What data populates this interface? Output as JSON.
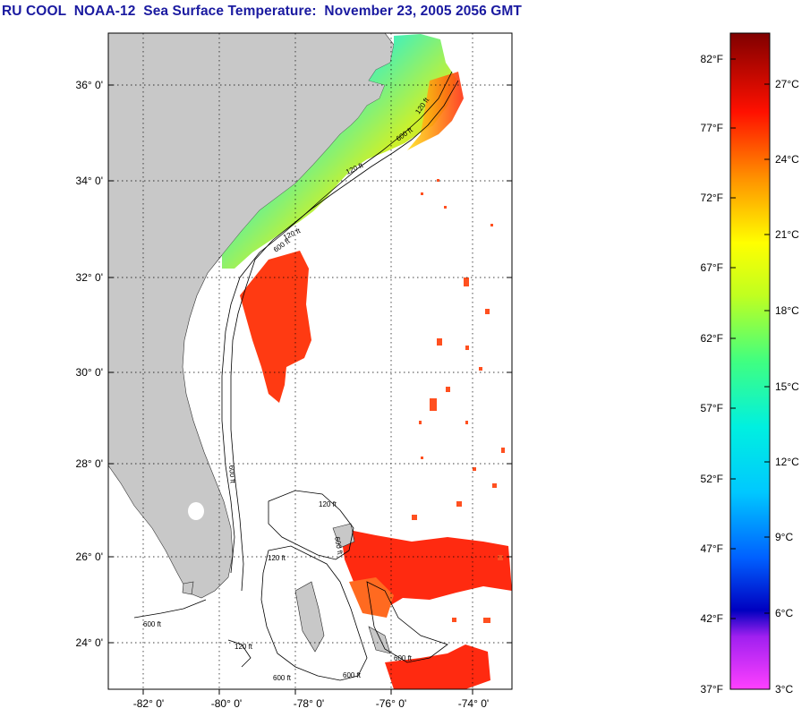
{
  "title": "RU COOL  NOAA-12  Sea Surface Temperature:  November 23, 2005 2056 GMT",
  "map": {
    "lat_labels": [
      "36° 0'",
      "34° 0'",
      "32° 0'",
      "30° 0'",
      "28° 0'",
      "26° 0'",
      "24° 0'"
    ],
    "lon_labels": [
      "-82° 0'",
      "-80° 0'",
      "-78° 0'",
      "-76° 0'",
      "-74° 0'"
    ],
    "contour_labels": [
      "120 ft",
      "600 ft",
      "120 ft",
      "600 ft",
      "120 ft",
      "600 ft",
      "600 ft",
      "600 ft",
      "120 ft",
      "600 ft",
      "120 ft",
      "600 ft",
      "600 ft",
      "120 ft"
    ],
    "colors": {
      "land": "#c8c8c8",
      "ocean_nodata": "#ffffff",
      "warm": "#ff2a10",
      "grid": "#000000"
    }
  },
  "colorbar": {
    "fahrenheit_labels": [
      "82°F",
      "77°F",
      "72°F",
      "67°F",
      "62°F",
      "57°F",
      "52°F",
      "47°F",
      "42°F",
      "37°F"
    ],
    "celsius_labels": [
      "27°C",
      "24°C",
      "21°C",
      "18°C",
      "15°C",
      "12°C",
      "9°C",
      "6°C",
      "3°C"
    ],
    "range_f": [
      37,
      84
    ],
    "range_c": [
      3,
      29
    ]
  }
}
